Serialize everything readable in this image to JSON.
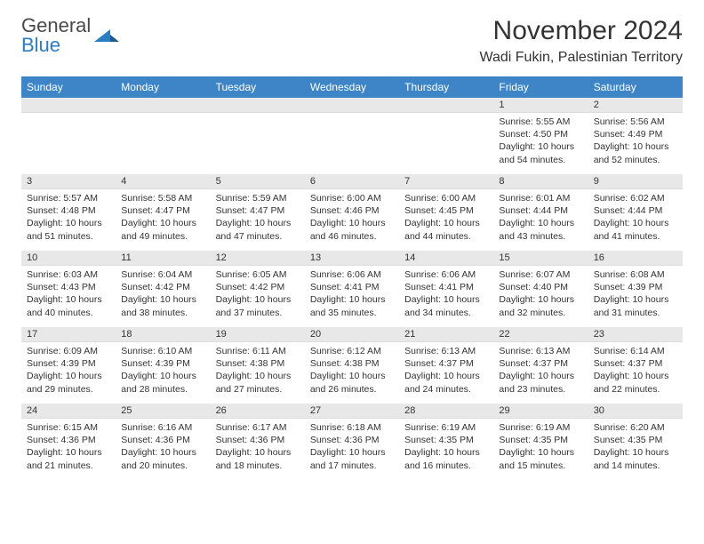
{
  "logo": {
    "line1": "General",
    "line2": "Blue",
    "color_gray": "#4a4a4a",
    "color_blue": "#2b7dc4"
  },
  "title": "November 2024",
  "location": "Wadi Fukin, Palestinian Territory",
  "colors": {
    "header_bg": "#3d85c6",
    "header_fg": "#ffffff",
    "daynum_bg": "#e8e8e8",
    "text": "#333333"
  },
  "weekdays": [
    "Sunday",
    "Monday",
    "Tuesday",
    "Wednesday",
    "Thursday",
    "Friday",
    "Saturday"
  ],
  "weeks": [
    [
      null,
      null,
      null,
      null,
      null,
      {
        "n": "1",
        "sr": "5:55 AM",
        "ss": "4:50 PM",
        "dl": "10 hours and 54 minutes."
      },
      {
        "n": "2",
        "sr": "5:56 AM",
        "ss": "4:49 PM",
        "dl": "10 hours and 52 minutes."
      }
    ],
    [
      {
        "n": "3",
        "sr": "5:57 AM",
        "ss": "4:48 PM",
        "dl": "10 hours and 51 minutes."
      },
      {
        "n": "4",
        "sr": "5:58 AM",
        "ss": "4:47 PM",
        "dl": "10 hours and 49 minutes."
      },
      {
        "n": "5",
        "sr": "5:59 AM",
        "ss": "4:47 PM",
        "dl": "10 hours and 47 minutes."
      },
      {
        "n": "6",
        "sr": "6:00 AM",
        "ss": "4:46 PM",
        "dl": "10 hours and 46 minutes."
      },
      {
        "n": "7",
        "sr": "6:00 AM",
        "ss": "4:45 PM",
        "dl": "10 hours and 44 minutes."
      },
      {
        "n": "8",
        "sr": "6:01 AM",
        "ss": "4:44 PM",
        "dl": "10 hours and 43 minutes."
      },
      {
        "n": "9",
        "sr": "6:02 AM",
        "ss": "4:44 PM",
        "dl": "10 hours and 41 minutes."
      }
    ],
    [
      {
        "n": "10",
        "sr": "6:03 AM",
        "ss": "4:43 PM",
        "dl": "10 hours and 40 minutes."
      },
      {
        "n": "11",
        "sr": "6:04 AM",
        "ss": "4:42 PM",
        "dl": "10 hours and 38 minutes."
      },
      {
        "n": "12",
        "sr": "6:05 AM",
        "ss": "4:42 PM",
        "dl": "10 hours and 37 minutes."
      },
      {
        "n": "13",
        "sr": "6:06 AM",
        "ss": "4:41 PM",
        "dl": "10 hours and 35 minutes."
      },
      {
        "n": "14",
        "sr": "6:06 AM",
        "ss": "4:41 PM",
        "dl": "10 hours and 34 minutes."
      },
      {
        "n": "15",
        "sr": "6:07 AM",
        "ss": "4:40 PM",
        "dl": "10 hours and 32 minutes."
      },
      {
        "n": "16",
        "sr": "6:08 AM",
        "ss": "4:39 PM",
        "dl": "10 hours and 31 minutes."
      }
    ],
    [
      {
        "n": "17",
        "sr": "6:09 AM",
        "ss": "4:39 PM",
        "dl": "10 hours and 29 minutes."
      },
      {
        "n": "18",
        "sr": "6:10 AM",
        "ss": "4:39 PM",
        "dl": "10 hours and 28 minutes."
      },
      {
        "n": "19",
        "sr": "6:11 AM",
        "ss": "4:38 PM",
        "dl": "10 hours and 27 minutes."
      },
      {
        "n": "20",
        "sr": "6:12 AM",
        "ss": "4:38 PM",
        "dl": "10 hours and 26 minutes."
      },
      {
        "n": "21",
        "sr": "6:13 AM",
        "ss": "4:37 PM",
        "dl": "10 hours and 24 minutes."
      },
      {
        "n": "22",
        "sr": "6:13 AM",
        "ss": "4:37 PM",
        "dl": "10 hours and 23 minutes."
      },
      {
        "n": "23",
        "sr": "6:14 AM",
        "ss": "4:37 PM",
        "dl": "10 hours and 22 minutes."
      }
    ],
    [
      {
        "n": "24",
        "sr": "6:15 AM",
        "ss": "4:36 PM",
        "dl": "10 hours and 21 minutes."
      },
      {
        "n": "25",
        "sr": "6:16 AM",
        "ss": "4:36 PM",
        "dl": "10 hours and 20 minutes."
      },
      {
        "n": "26",
        "sr": "6:17 AM",
        "ss": "4:36 PM",
        "dl": "10 hours and 18 minutes."
      },
      {
        "n": "27",
        "sr": "6:18 AM",
        "ss": "4:36 PM",
        "dl": "10 hours and 17 minutes."
      },
      {
        "n": "28",
        "sr": "6:19 AM",
        "ss": "4:35 PM",
        "dl": "10 hours and 16 minutes."
      },
      {
        "n": "29",
        "sr": "6:19 AM",
        "ss": "4:35 PM",
        "dl": "10 hours and 15 minutes."
      },
      {
        "n": "30",
        "sr": "6:20 AM",
        "ss": "4:35 PM",
        "dl": "10 hours and 14 minutes."
      }
    ]
  ],
  "labels": {
    "sunrise": "Sunrise:",
    "sunset": "Sunset:",
    "daylight": "Daylight:"
  }
}
